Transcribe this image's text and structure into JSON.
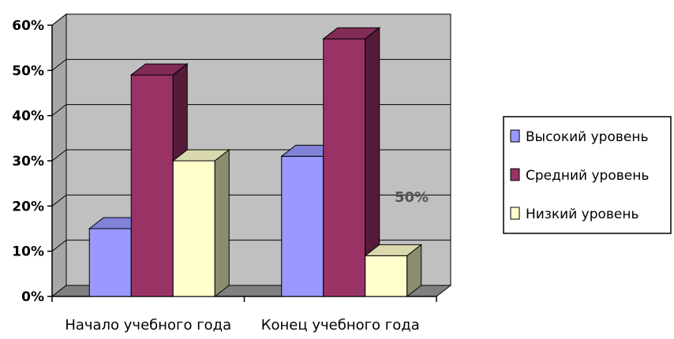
{
  "chart_data": {
    "type": "bar",
    "categories": [
      "Начало учебного года",
      "Конец учебного года"
    ],
    "series": [
      {
        "name": "Высокий уровень",
        "values": [
          15,
          31
        ],
        "color": "#9999ff"
      },
      {
        "name": "Средний уровень",
        "values": [
          49,
          57
        ],
        "color": "#993366"
      },
      {
        "name": "Низкий уровень",
        "values": [
          30,
          9
        ],
        "color": "#ffffcc"
      }
    ],
    "ylim": [
      0,
      60
    ],
    "yticks": [
      "0%",
      "10%",
      "20%",
      "30%",
      "40%",
      "50%",
      "60%"
    ],
    "annotation": "50%",
    "grid": true,
    "style": "3d-column",
    "legend_position": "right",
    "wall_color": "#c0c0c0",
    "floor_color": "#808080"
  }
}
